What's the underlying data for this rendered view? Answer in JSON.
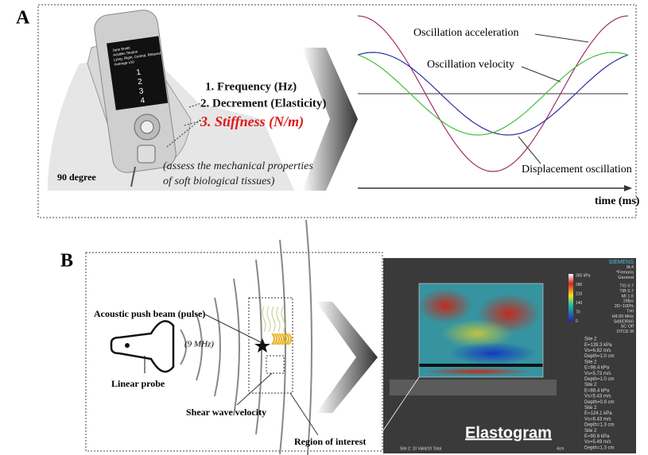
{
  "panel_a": {
    "label": "A",
    "device_screen": [
      "Jane Smith",
      "Achilles Tendon",
      "Lying, Right, Central, Relaxed",
      "Average x10",
      "1",
      "2",
      "3",
      "4"
    ],
    "list": [
      "1. Frequency (Hz)",
      "2. Decrement (Elasticity)",
      "3. Stiffness (N/m)"
    ],
    "angle": "90 degree",
    "note": [
      "(assess the mechanical properties",
      "of soft biological tissues)"
    ],
    "curves": [
      "Oscillation acceleration",
      "Oscillation velocity",
      "Displacement oscillation"
    ],
    "x_axis": "time (ms)"
  },
  "panel_b": {
    "label": "B",
    "push_beam": "Acoustic push beam (pulse)",
    "frequency": "(9 MHz)",
    "probe": "Linear probe",
    "shear": "Shear wave velocity",
    "roi": "Region of interest",
    "image_title": "Elastogram",
    "header": [
      "SIEMENS",
      "9L4",
      "*Femoris",
      "General"
    ],
    "scale": [
      "350 kPa",
      "280",
      "210",
      "140",
      "70",
      "0"
    ],
    "settings": [
      "TIS 0.7",
      "TIB 0.7",
      "MI 1.6",
      "16fps",
      "2D~100%",
      "THI",
      "H8.00 MHz",
      "Sd8/DR60",
      "SC Off",
      "DTCE M"
    ],
    "measurements": [
      "Site 2",
      "E=139.3 kPa",
      "Vs=6.82 m/s",
      "Depth=1.0 cm",
      "Site 2",
      "E=98.4 kPa",
      "Vs=5.73 m/s",
      "Depth=1.0 cm",
      "Site 2",
      "E=88.4 kPa",
      "Vs=5.43 m/s",
      "Depth=0.9 cm",
      "Site 2",
      "E=124.1 kPa",
      "Vs=6.43 m/s",
      "Depth=1.3 cm",
      "Site 2",
      "E=90.6 kPa",
      "Vs=5.49 m/s",
      "Depth=1.3 cm"
    ],
    "footer": "Site 2: 10 Valid/10 Total",
    "depth": "4cm"
  }
}
